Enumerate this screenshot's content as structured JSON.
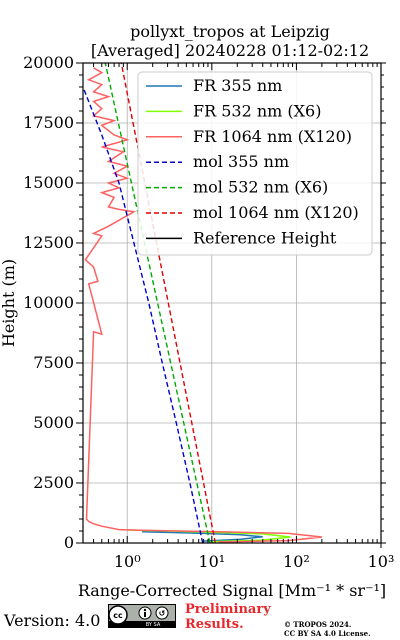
{
  "header": {
    "title_line1": "pollyxt_tropos at Leipzig",
    "title_line2": "[Averaged] 20240228 01:12-02:12"
  },
  "footer": {
    "version": "Version: 4.0",
    "cc_badge_text": "BY SA",
    "preliminary_line1": "Preliminary",
    "preliminary_line2": "Results.",
    "copyright_line1": "© TROPOS 2024.",
    "copyright_line2": "CC BY SA 4.0 License."
  },
  "chart_data": {
    "type": "line",
    "title": "pollyxt_tropos at Leipzig\n[Averaged] 20240228 01:12-02:12",
    "xlabel": "Range-Corrected Signal [Mm⁻¹ * sr⁻¹]",
    "ylabel": "Height (m)",
    "xscale": "log",
    "xlim": [
      0.3,
      1000
    ],
    "ylim": [
      0,
      20000
    ],
    "xticks": [
      1,
      10,
      100,
      1000
    ],
    "xtick_labels": [
      "10⁰",
      "10¹",
      "10²",
      "10³"
    ],
    "yticks": [
      0,
      2500,
      5000,
      7500,
      10000,
      12500,
      15000,
      17500,
      20000
    ],
    "grid": true,
    "legend_position": "top-right",
    "series": [
      {
        "name": "FR 355 nm",
        "color": "#1f77b4",
        "style": "solid",
        "points": [
          [
            8,
            80
          ],
          [
            22,
            160
          ],
          [
            40,
            260
          ],
          [
            22,
            340
          ],
          [
            8,
            400
          ],
          [
            3,
            440
          ],
          [
            1.5,
            470
          ]
        ]
      },
      {
        "name": "FR 532 nm (X6)",
        "color": "#7fff00",
        "style": "solid",
        "points": [
          [
            10,
            60
          ],
          [
            40,
            120
          ],
          [
            85,
            250
          ],
          [
            40,
            380
          ],
          [
            10,
            450
          ],
          [
            3,
            500
          ],
          [
            1,
            540
          ]
        ]
      },
      {
        "name": "FR 1064 nm (X120)",
        "color": "#ff6060",
        "style": "solid",
        "points": [
          [
            12,
            40
          ],
          [
            80,
            100
          ],
          [
            200,
            250
          ],
          [
            80,
            400
          ],
          [
            12,
            470
          ],
          [
            2,
            520
          ],
          [
            0.8,
            560
          ],
          [
            0.5,
            700
          ],
          [
            0.4,
            800
          ],
          [
            0.35,
            900
          ],
          [
            0.33,
            1000
          ],
          [
            0.4,
            8800
          ],
          [
            0.5,
            8700
          ],
          [
            0.35,
            10800
          ],
          [
            0.45,
            10900
          ],
          [
            0.4,
            11500
          ],
          [
            0.32,
            11800
          ],
          [
            0.5,
            12800
          ],
          [
            0.4,
            12900
          ],
          [
            0.6,
            13200
          ],
          [
            1.2,
            13800
          ],
          [
            0.8,
            13900
          ],
          [
            0.6,
            14000
          ],
          [
            0.7,
            14400
          ],
          [
            0.5,
            14600
          ],
          [
            0.8,
            14800
          ],
          [
            0.6,
            15000
          ],
          [
            1.0,
            15200
          ],
          [
            0.7,
            15400
          ],
          [
            1.0,
            15700
          ],
          [
            0.6,
            15900
          ],
          [
            0.9,
            16300
          ],
          [
            0.5,
            16500
          ],
          [
            1.0,
            16800
          ],
          [
            0.7,
            17000
          ],
          [
            0.5,
            17400
          ],
          [
            0.7,
            17600
          ],
          [
            0.4,
            17800
          ],
          [
            0.5,
            18100
          ],
          [
            0.4,
            18400
          ],
          [
            0.6,
            18600
          ],
          [
            0.4,
            18800
          ],
          [
            0.5,
            19100
          ],
          [
            0.35,
            19300
          ],
          [
            0.5,
            19600
          ],
          [
            0.4,
            19800
          ]
        ]
      },
      {
        "name": "mol 355 nm",
        "color": "#0000cc",
        "style": "dashed",
        "points": [
          [
            7.8,
            0
          ],
          [
            5.5,
            2500
          ],
          [
            3.8,
            5000
          ],
          [
            2.6,
            7500
          ],
          [
            1.8,
            10000
          ],
          [
            1.2,
            12500
          ],
          [
            0.8,
            15000
          ],
          [
            0.5,
            17000
          ],
          [
            0.3,
            19000
          ]
        ]
      },
      {
        "name": "mol 532 nm (X6)",
        "color": "#00aa00",
        "style": "dashed",
        "points": [
          [
            9.5,
            0
          ],
          [
            0.55,
            20000
          ]
        ]
      },
      {
        "name": "mol 1064 nm (X120)",
        "color": "#dd0000",
        "style": "dashed",
        "points": [
          [
            11,
            0
          ],
          [
            0.85,
            20000
          ]
        ]
      },
      {
        "name": "Reference Height",
        "color": "#000000",
        "style": "solid",
        "points": []
      }
    ]
  }
}
